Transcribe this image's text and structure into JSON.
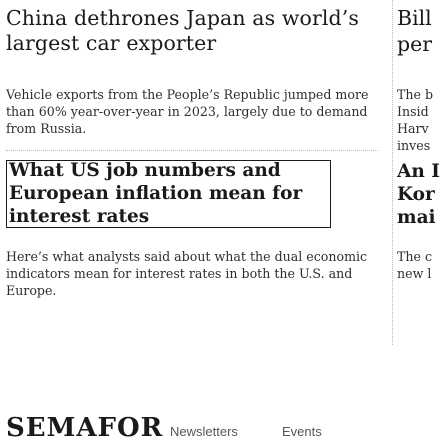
{
  "lead_story": {
    "headline": "China dethrones Japan as world’s largest car exporter",
    "summary": "Vehicle exports from the People’s Republic jumped more than 60% year-over-year in 2023, largely due to demand from Russia."
  },
  "second_story": {
    "headline": "What US job numbers and European inflation mean for interest rates",
    "summary": "Here’s what analysts said about what the dual economic indicators mean for interest rates in both the U.S. and Europe."
  },
  "side_column": {
    "headline_line1": "Bill",
    "headline_line2": "per",
    "text_lines": [
      "The b",
      "Insid",
      "Harv",
      "inves"
    ],
    "bold_lines": [
      "An I",
      "Kor",
      "mai"
    ],
    "text_lines_2": [
      "The c",
      "new l"
    ]
  },
  "footer": {
    "brand": "SEMAFOR",
    "nav": [
      "Newsletters",
      "Events"
    ]
  }
}
